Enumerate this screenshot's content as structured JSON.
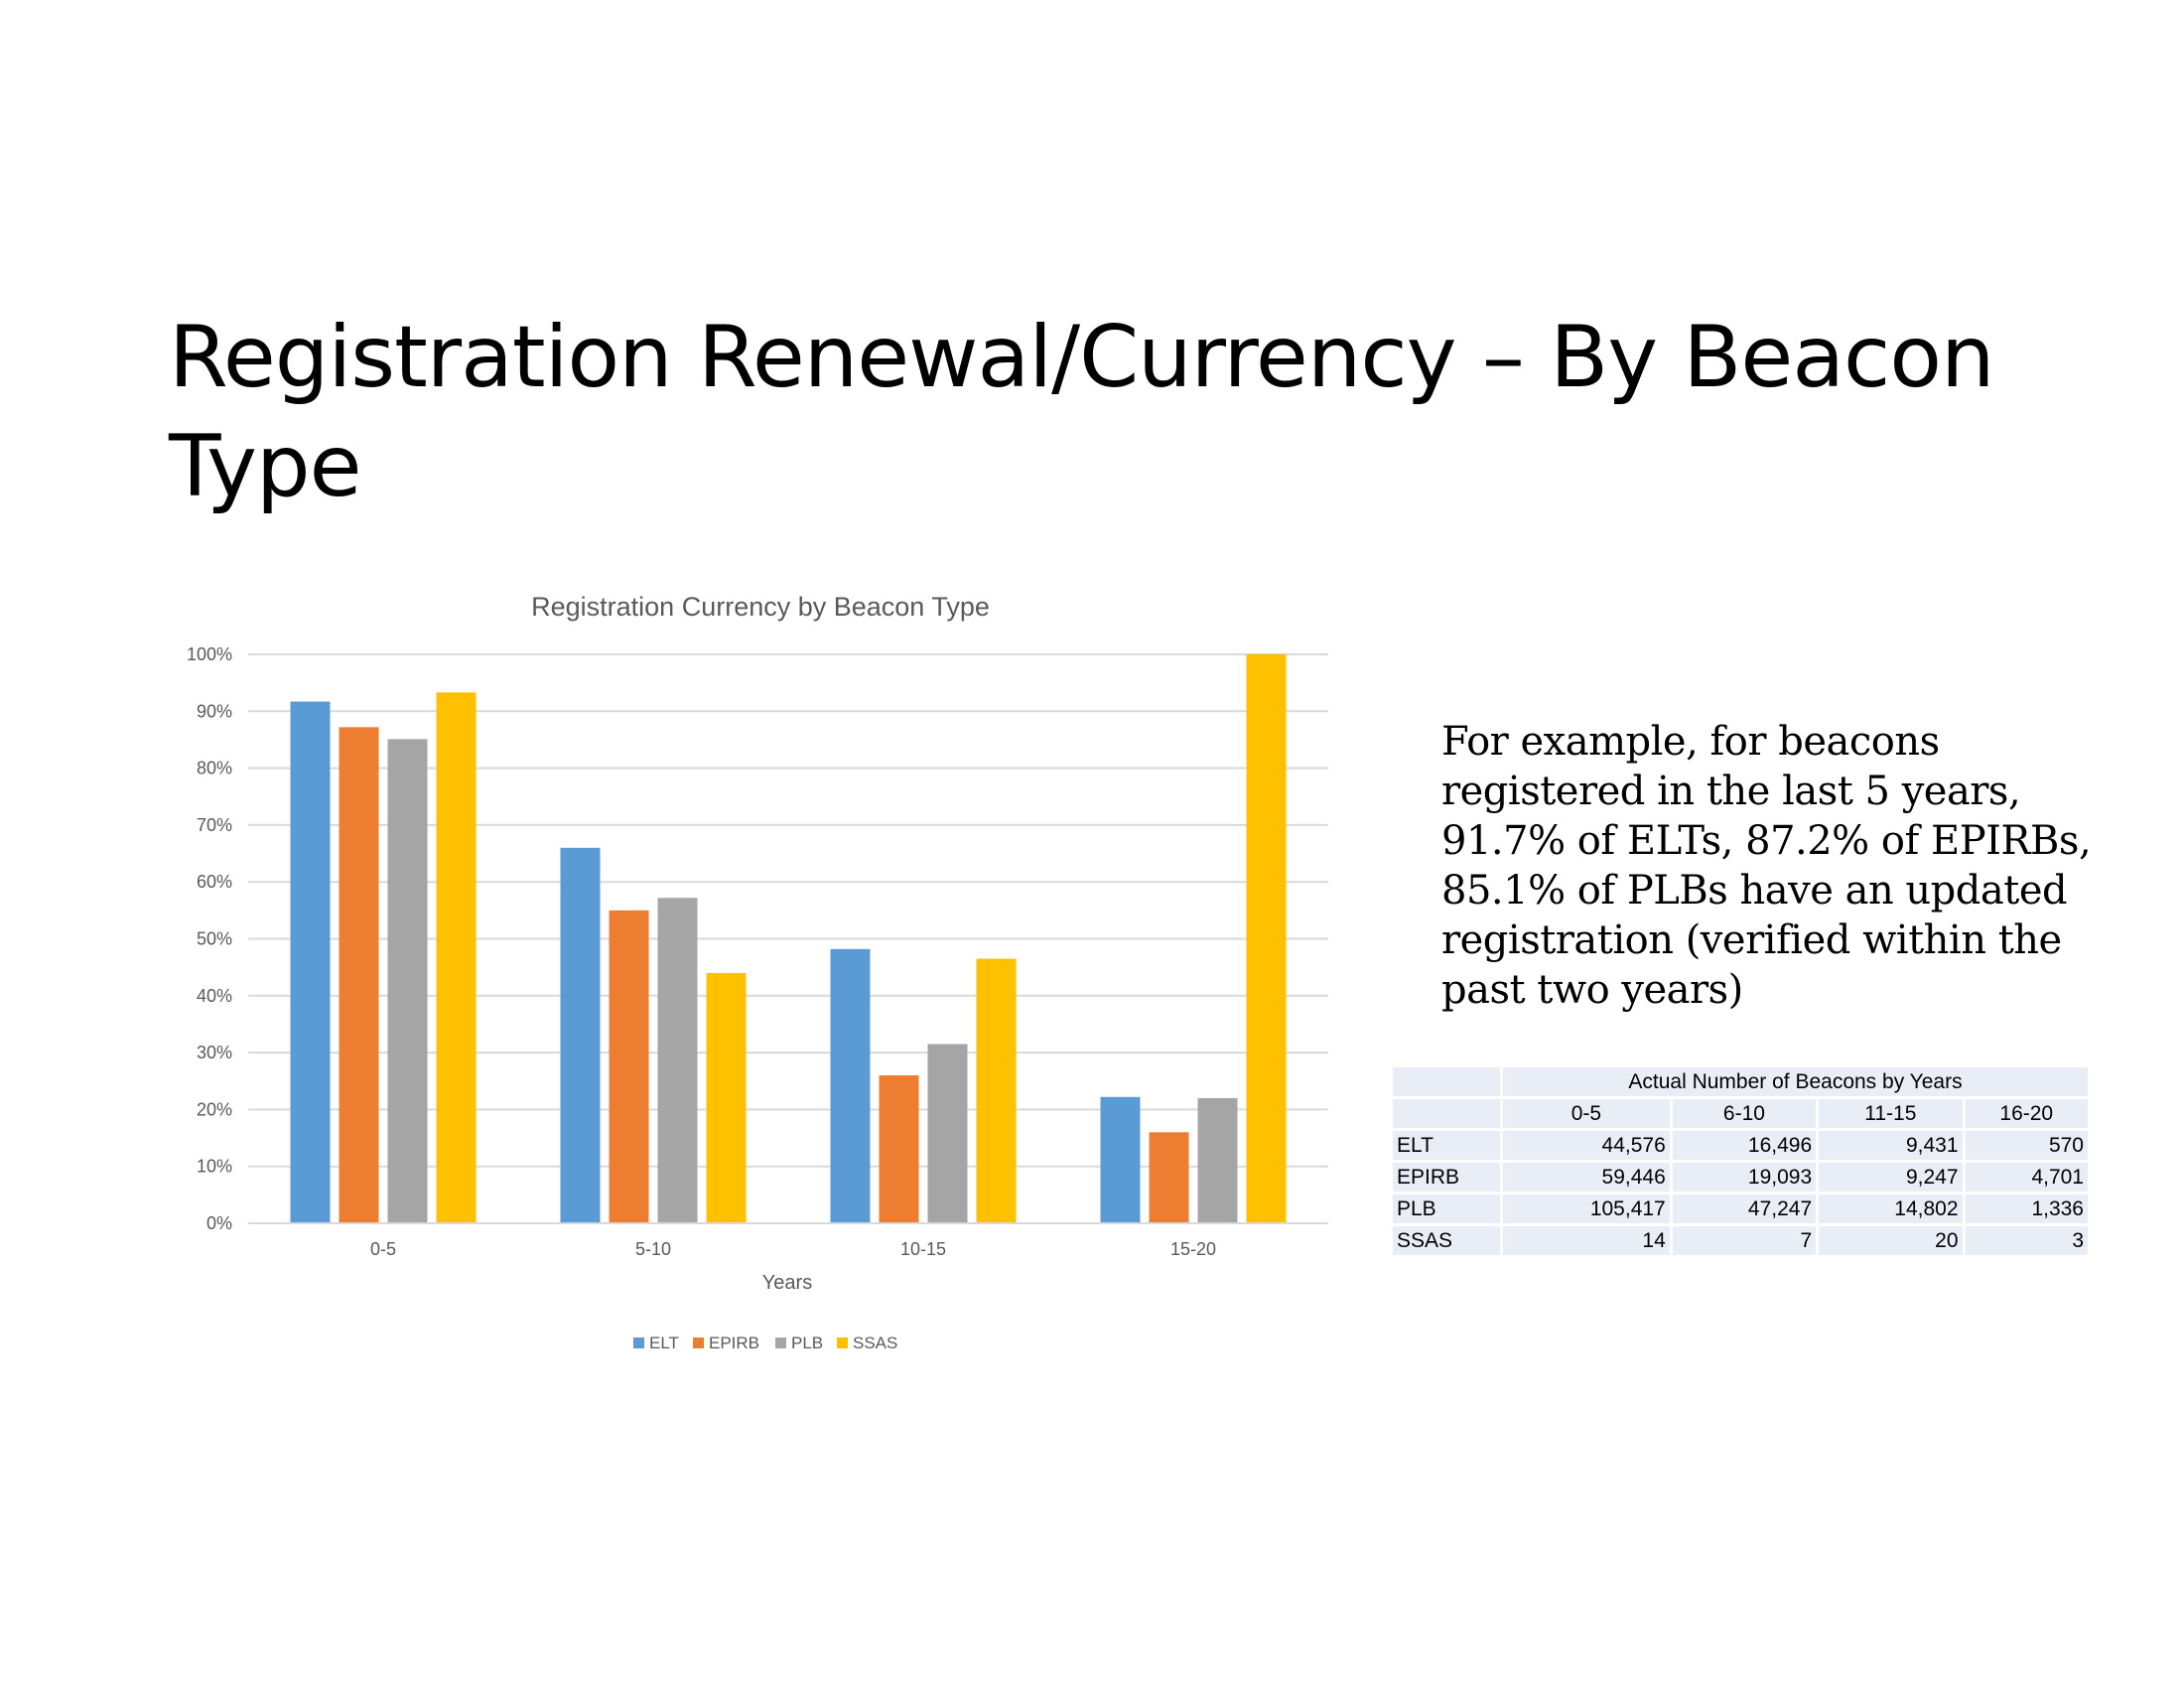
{
  "slide": {
    "title": "Registration Renewal/Currency – By Beacon Type",
    "note": "For example, for beacons registered in the last 5 years, 91.7% of ELTs, 87.2% of EPIRBs, 85.1% of PLBs have an updated registration (verified within the past two years)"
  },
  "chart_data": {
    "type": "bar",
    "title": "Registration Currency by Beacon Type",
    "xlabel": "Years",
    "ylabel": "",
    "categories": [
      "0-5",
      "5-10",
      "10-15",
      "15-20"
    ],
    "series": [
      {
        "name": "ELT",
        "color": "#5b9bd5",
        "values": [
          91.7,
          66.0,
          48.2,
          22.2
        ]
      },
      {
        "name": "EPIRB",
        "color": "#ed7d31",
        "values": [
          87.2,
          55.0,
          26.0,
          16.0
        ]
      },
      {
        "name": "PLB",
        "color": "#a5a5a5",
        "values": [
          85.1,
          57.2,
          31.5,
          22.0
        ]
      },
      {
        "name": "SSAS",
        "color": "#ffc000",
        "values": [
          93.3,
          44.0,
          46.5,
          100.0
        ]
      }
    ],
    "ylim": [
      0,
      100
    ],
    "yticks": [
      0,
      10,
      20,
      30,
      40,
      50,
      60,
      70,
      80,
      90,
      100
    ],
    "ytick_labels": [
      "0%",
      "10%",
      "20%",
      "30%",
      "40%",
      "50%",
      "60%",
      "70%",
      "80%",
      "90%",
      "100%"
    ],
    "grid": true,
    "legend": "bottom"
  },
  "table": {
    "title": "Actual Number of Beacons by Years",
    "columns": [
      "0-5",
      "6-10",
      "11-15",
      "16-20"
    ],
    "rows": [
      {
        "label": "ELT",
        "values": [
          "44,576",
          "16,496",
          "9,431",
          "570"
        ]
      },
      {
        "label": "EPIRB",
        "values": [
          "59,446",
          "19,093",
          "9,247",
          "4,701"
        ]
      },
      {
        "label": "PLB",
        "values": [
          "105,417",
          "47,247",
          "14,802",
          "1,336"
        ]
      },
      {
        "label": "SSAS",
        "values": [
          "14",
          "7",
          "20",
          "3"
        ]
      }
    ]
  }
}
